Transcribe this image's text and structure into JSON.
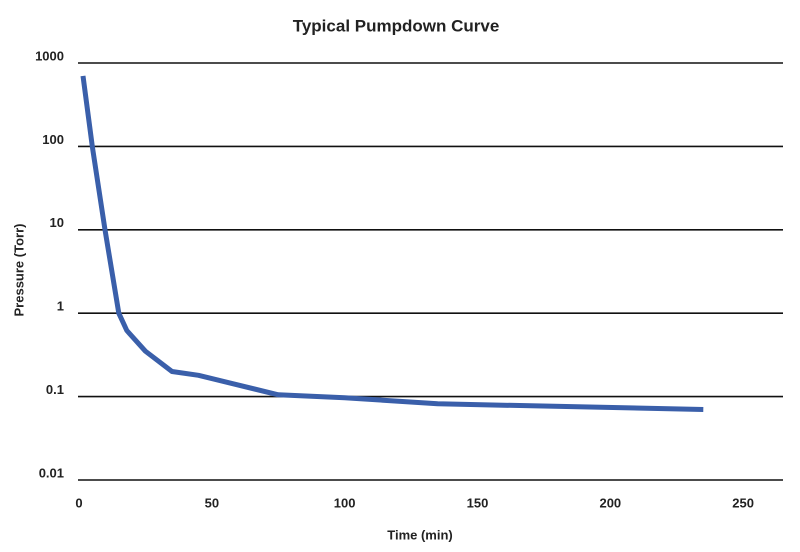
{
  "chart_data": {
    "type": "line",
    "title": "Typical Pumpdown Curve",
    "x_label": "Time (min)",
    "y_label": "Pressure (Torr)",
    "x": [
      1.5,
      5,
      9.8,
      15,
      18,
      25,
      35,
      45,
      75,
      100,
      135,
      235
    ],
    "values": [
      700,
      100,
      10,
      1,
      0.62,
      0.35,
      0.2,
      0.18,
      0.105,
      0.097,
      0.082,
      0.07
    ],
    "color": "#3a5faa",
    "xlim": [
      0,
      265
    ],
    "xticks": [
      0,
      50,
      100,
      150,
      200,
      250
    ],
    "ylim": [
      0.01,
      1000
    ],
    "yticks": [
      0.01,
      0.1,
      1,
      10,
      100,
      1000
    ],
    "y_log": true,
    "grid": true
  }
}
